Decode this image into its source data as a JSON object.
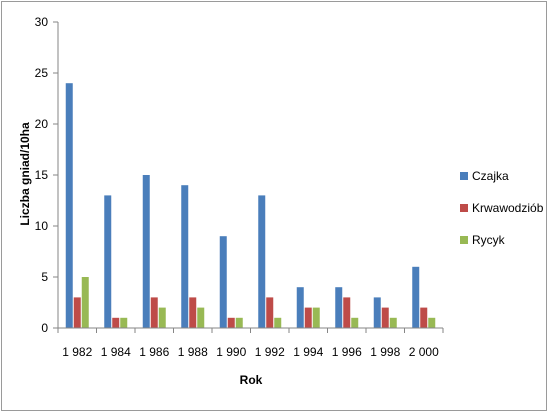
{
  "chart_data": {
    "type": "bar",
    "title": "",
    "xlabel": "Rok",
    "ylabel": "Liczba gniad/10ha",
    "ylim": [
      0,
      30
    ],
    "yticks": [
      0,
      5,
      10,
      15,
      20,
      25,
      30
    ],
    "grid": false,
    "legend_position": "right",
    "categories": [
      "1 982",
      "1 984",
      "1 986",
      "1 988",
      "1 990",
      "1 992",
      "1 994",
      "1 996",
      "1 998",
      "2 000"
    ],
    "series": [
      {
        "name": "Czajka",
        "color": "#4a7ebb",
        "values": [
          24,
          13,
          15,
          14,
          9,
          13,
          4,
          4,
          3,
          6
        ]
      },
      {
        "name": "Krwawodziób",
        "color": "#be4b48",
        "values": [
          3,
          1,
          3,
          3,
          1,
          3,
          2,
          3,
          2,
          2
        ]
      },
      {
        "name": "Rycyk",
        "color": "#98b954",
        "values": [
          5,
          1,
          2,
          2,
          1,
          1,
          2,
          1,
          1,
          1
        ]
      }
    ]
  }
}
